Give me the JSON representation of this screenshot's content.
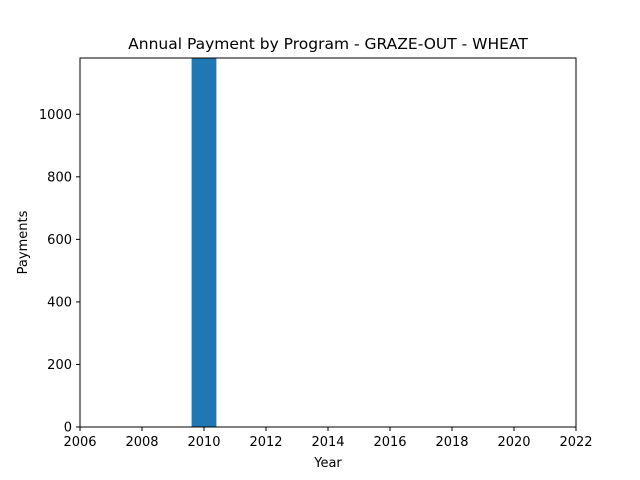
{
  "chart_data": {
    "type": "bar",
    "title": "Annual Payment by Program - GRAZE-OUT - WHEAT",
    "xlabel": "Year",
    "ylabel": "Payments",
    "xlim": [
      2006,
      2022
    ],
    "ylim": [
      0,
      1180
    ],
    "x_ticks": [
      2006,
      2008,
      2010,
      2012,
      2014,
      2016,
      2018,
      2020,
      2022
    ],
    "y_ticks": [
      0,
      200,
      400,
      600,
      800,
      1000
    ],
    "x": [
      2010
    ],
    "values": [
      1180
    ],
    "bar_width_years": 0.8,
    "bar_color": "#1f77b4",
    "grid": false
  }
}
